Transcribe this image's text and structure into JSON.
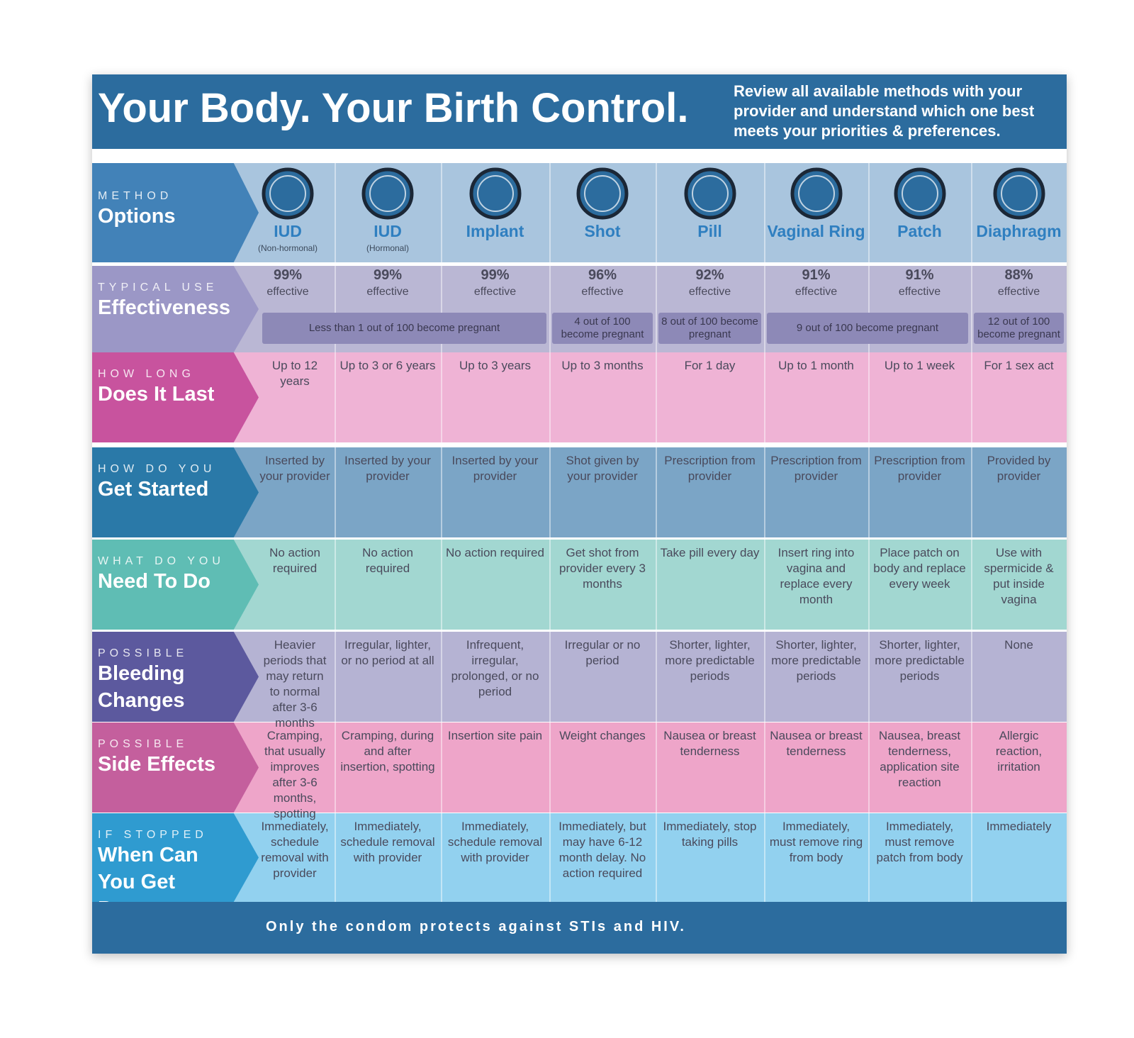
{
  "header": {
    "title": "Your Body. Your Birth Control.",
    "subtitle": "Review all available methods with your provider and understand which one best meets your priorities & preferences."
  },
  "options": {
    "kicker": "METHOD",
    "label": "Options"
  },
  "methods": [
    {
      "name": "IUD",
      "note": "(Non-hormonal)"
    },
    {
      "name": "IUD",
      "note": "(Hormonal)"
    },
    {
      "name": "Implant"
    },
    {
      "name": "Shot"
    },
    {
      "name": "Pill"
    },
    {
      "name": "Vaginal Ring"
    },
    {
      "name": "Patch"
    },
    {
      "name": "Diaphragm"
    }
  ],
  "effectiveness": {
    "kicker": "TYPICAL USE",
    "label": "Effectiveness",
    "cells": [
      {
        "percent": "99%",
        "label": "effective"
      },
      {
        "percent": "99%",
        "label": "effective"
      },
      {
        "percent": "99%",
        "label": "effective"
      },
      {
        "percent": "96%",
        "label": "effective"
      },
      {
        "percent": "92%",
        "label": "effective"
      },
      {
        "percent": "91%",
        "label": "effective"
      },
      {
        "percent": "91%",
        "label": "effective"
      },
      {
        "percent": "88%",
        "label": "effective"
      }
    ],
    "spans": [
      "Less than 1 out of 100 become pregnant",
      "4 out of 100 become pregnant",
      "8 out of 100 become pregnant",
      "9 out of 100 become pregnant",
      "12 out of 100 become pregnant"
    ]
  },
  "rows": [
    {
      "kicker": "HOW LONG",
      "label": "Does It Last",
      "cells": [
        "Up to 12 years",
        "Up to 3 or 6 years",
        "Up to 3 years",
        "Up to 3 months",
        "For 1 day",
        "Up to 1 month",
        "Up to 1 week",
        "For 1 sex act"
      ]
    },
    {
      "kicker": "HOW DO YOU",
      "label": "Get Started",
      "cells": [
        "Inserted by your provider",
        "Inserted by your provider",
        "Inserted by your provider",
        "Shot given by your provider",
        "Prescription from provider",
        "Prescription from provider",
        "Prescription from provider",
        "Provided by provider"
      ]
    },
    {
      "kicker": "WHAT DO YOU",
      "label": "Need To Do",
      "cells": [
        "No action required",
        "No action required",
        "No action required",
        "Get shot from provider every 3 months",
        "Take pill every day",
        "Insert ring into vagina and replace every month",
        "Place patch on body and replace every week",
        "Use with spermicide & put inside vagina"
      ]
    },
    {
      "kicker": "POSSIBLE",
      "label": "Bleeding Changes",
      "cells": [
        "Heavier periods that may return to normal after 3-6 months",
        "Irregular, lighter, or no period at all",
        "Infrequent, irregular, prolonged, or no period",
        "Irregular or no period",
        "Shorter, lighter, more predictable periods",
        "Shorter, lighter, more predictable periods",
        "Shorter, lighter, more predictable periods",
        "None"
      ]
    },
    {
      "kicker": "POSSIBLE",
      "label": "Side Effects",
      "cells": [
        "Cramping, that usually improves after 3-6 months, spotting",
        "Cramping, during and after insertion, spotting",
        "Insertion site pain",
        "Weight changes",
        "Nausea or breast tenderness",
        "Nausea or breast tenderness",
        "Nausea, breast tenderness, application site reaction",
        "Allergic reaction, irritation"
      ]
    },
    {
      "kicker": "IF STOPPED",
      "label": "When Can You Get Pregnant",
      "cells": [
        "Immediately, schedule removal with provider",
        "Immediately, schedule removal with provider",
        "Immediately, schedule removal with provider",
        "Immediately, but may have 6-12 month delay. No action required",
        "Immediately, stop taking pills",
        "Immediately, must remove ring from body",
        "Immediately, must remove patch from body",
        "Immediately"
      ]
    }
  ],
  "footer": "Only the condom protects against STIs and HIV."
}
